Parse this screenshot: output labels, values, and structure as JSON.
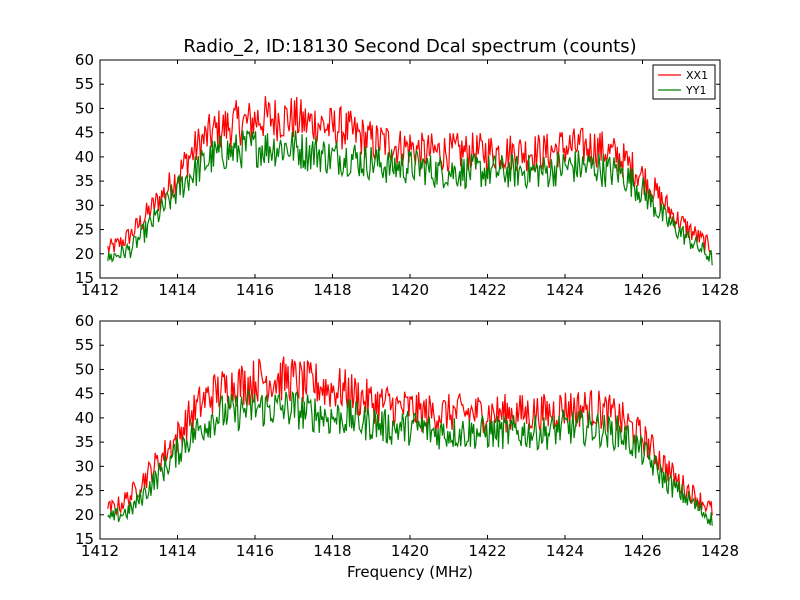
{
  "chart_data": [
    {
      "type": "line",
      "title": "Radio_2, ID:18130 Second Dcal spectrum (counts)",
      "xlabel": "",
      "ylabel": "",
      "xlim": [
        1412,
        1428
      ],
      "ylim": [
        15,
        60
      ],
      "xticks": [
        1412,
        1414,
        1416,
        1418,
        1420,
        1422,
        1424,
        1426,
        1428
      ],
      "yticks": [
        15,
        20,
        25,
        30,
        35,
        40,
        45,
        50,
        55,
        60
      ],
      "legend": {
        "placement": "top-right",
        "entries": [
          "XX1",
          "YY1"
        ]
      },
      "series": [
        {
          "name": "XX1",
          "color": "#ff0000",
          "x": [
            1412.2,
            1412.5,
            1412.8,
            1413.1,
            1413.4,
            1413.7,
            1414.0,
            1414.3,
            1414.6,
            1414.9,
            1415.2,
            1415.5,
            1415.8,
            1416.1,
            1416.4,
            1416.7,
            1417.0,
            1417.3,
            1417.6,
            1417.9,
            1418.2,
            1418.5,
            1418.8,
            1419.1,
            1419.4,
            1419.7,
            1420.0,
            1420.3,
            1420.6,
            1420.9,
            1421.2,
            1421.5,
            1421.8,
            1422.1,
            1422.4,
            1422.7,
            1423.0,
            1423.3,
            1423.6,
            1423.9,
            1424.2,
            1424.5,
            1424.8,
            1425.1,
            1425.4,
            1425.7,
            1426.0,
            1426.3,
            1426.6,
            1426.9,
            1427.2,
            1427.5,
            1427.8
          ],
          "y": [
            21,
            22,
            24,
            27,
            30,
            33,
            36,
            40,
            43,
            45,
            46,
            47,
            47,
            48,
            48,
            48,
            48,
            47,
            47,
            46,
            46,
            45,
            44,
            43,
            43,
            42,
            42,
            41,
            41,
            41,
            41,
            41,
            41,
            41,
            41,
            41,
            41,
            41,
            41,
            42,
            42,
            42,
            42,
            41,
            40,
            38,
            36,
            33,
            30,
            27,
            25,
            23,
            21
          ]
        },
        {
          "name": "YY1",
          "color": "#008000",
          "x": [
            1412.2,
            1412.5,
            1412.8,
            1413.1,
            1413.4,
            1413.7,
            1414.0,
            1414.3,
            1414.6,
            1414.9,
            1415.2,
            1415.5,
            1415.8,
            1416.1,
            1416.4,
            1416.7,
            1417.0,
            1417.3,
            1417.6,
            1417.9,
            1418.2,
            1418.5,
            1418.8,
            1419.1,
            1419.4,
            1419.7,
            1420.0,
            1420.3,
            1420.6,
            1420.9,
            1421.2,
            1421.5,
            1421.8,
            1422.1,
            1422.4,
            1422.7,
            1423.0,
            1423.3,
            1423.6,
            1423.9,
            1424.2,
            1424.5,
            1424.8,
            1425.1,
            1425.4,
            1425.7,
            1426.0,
            1426.3,
            1426.6,
            1426.9,
            1427.2,
            1427.5,
            1427.8
          ],
          "y": [
            19,
            20,
            21,
            24,
            27,
            30,
            33,
            36,
            38,
            40,
            41,
            41,
            42,
            42,
            42,
            42,
            42,
            41,
            41,
            40,
            40,
            40,
            39,
            39,
            38,
            38,
            38,
            38,
            37,
            37,
            37,
            37,
            37,
            37,
            37,
            37,
            37,
            37,
            37,
            38,
            38,
            38,
            38,
            37,
            37,
            35,
            33,
            30,
            27,
            25,
            23,
            21,
            19
          ]
        }
      ]
    },
    {
      "type": "line",
      "title": "",
      "xlabel": "Frequency (MHz)",
      "ylabel": "",
      "xlim": [
        1412,
        1428
      ],
      "ylim": [
        15,
        60
      ],
      "xticks": [
        1412,
        1414,
        1416,
        1418,
        1420,
        1422,
        1424,
        1426,
        1428
      ],
      "yticks": [
        15,
        20,
        25,
        30,
        35,
        40,
        45,
        50,
        55,
        60
      ],
      "series": [
        {
          "color": "#ff0000",
          "x": [
            1412.2,
            1412.5,
            1412.8,
            1413.1,
            1413.4,
            1413.7,
            1414.0,
            1414.3,
            1414.6,
            1414.9,
            1415.2,
            1415.5,
            1415.8,
            1416.1,
            1416.4,
            1416.7,
            1417.0,
            1417.3,
            1417.6,
            1417.9,
            1418.2,
            1418.5,
            1418.8,
            1419.1,
            1419.4,
            1419.7,
            1420.0,
            1420.3,
            1420.6,
            1420.9,
            1421.2,
            1421.5,
            1421.8,
            1422.1,
            1422.4,
            1422.7,
            1423.0,
            1423.3,
            1423.6,
            1423.9,
            1424.2,
            1424.5,
            1424.8,
            1425.1,
            1425.4,
            1425.7,
            1426.0,
            1426.3,
            1426.6,
            1426.9,
            1427.2,
            1427.5,
            1427.8
          ],
          "y": [
            21,
            22,
            24,
            27,
            30,
            33,
            36,
            40,
            43,
            45,
            46,
            47,
            47,
            48,
            48,
            48,
            48,
            47,
            47,
            46,
            46,
            45,
            44,
            43,
            43,
            42,
            42,
            41,
            41,
            41,
            41,
            41,
            41,
            41,
            41,
            41,
            41,
            41,
            41,
            42,
            42,
            42,
            42,
            41,
            40,
            38,
            36,
            33,
            30,
            27,
            25,
            23,
            21
          ]
        },
        {
          "color": "#008000",
          "x": [
            1412.2,
            1412.5,
            1412.8,
            1413.1,
            1413.4,
            1413.7,
            1414.0,
            1414.3,
            1414.6,
            1414.9,
            1415.2,
            1415.5,
            1415.8,
            1416.1,
            1416.4,
            1416.7,
            1417.0,
            1417.3,
            1417.6,
            1417.9,
            1418.2,
            1418.5,
            1418.8,
            1419.1,
            1419.4,
            1419.7,
            1420.0,
            1420.3,
            1420.6,
            1420.9,
            1421.2,
            1421.5,
            1421.8,
            1422.1,
            1422.4,
            1422.7,
            1423.0,
            1423.3,
            1423.6,
            1423.9,
            1424.2,
            1424.5,
            1424.8,
            1425.1,
            1425.4,
            1425.7,
            1426.0,
            1426.3,
            1426.6,
            1426.9,
            1427.2,
            1427.5,
            1427.8
          ],
          "y": [
            19,
            20,
            21,
            24,
            27,
            30,
            33,
            36,
            38,
            40,
            41,
            41,
            42,
            42,
            42,
            42,
            42,
            41,
            41,
            40,
            40,
            40,
            39,
            39,
            38,
            38,
            38,
            38,
            37,
            37,
            37,
            37,
            37,
            37,
            37,
            37,
            37,
            37,
            37,
            38,
            38,
            38,
            38,
            37,
            37,
            35,
            33,
            30,
            27,
            25,
            23,
            21,
            19
          ]
        }
      ]
    }
  ]
}
